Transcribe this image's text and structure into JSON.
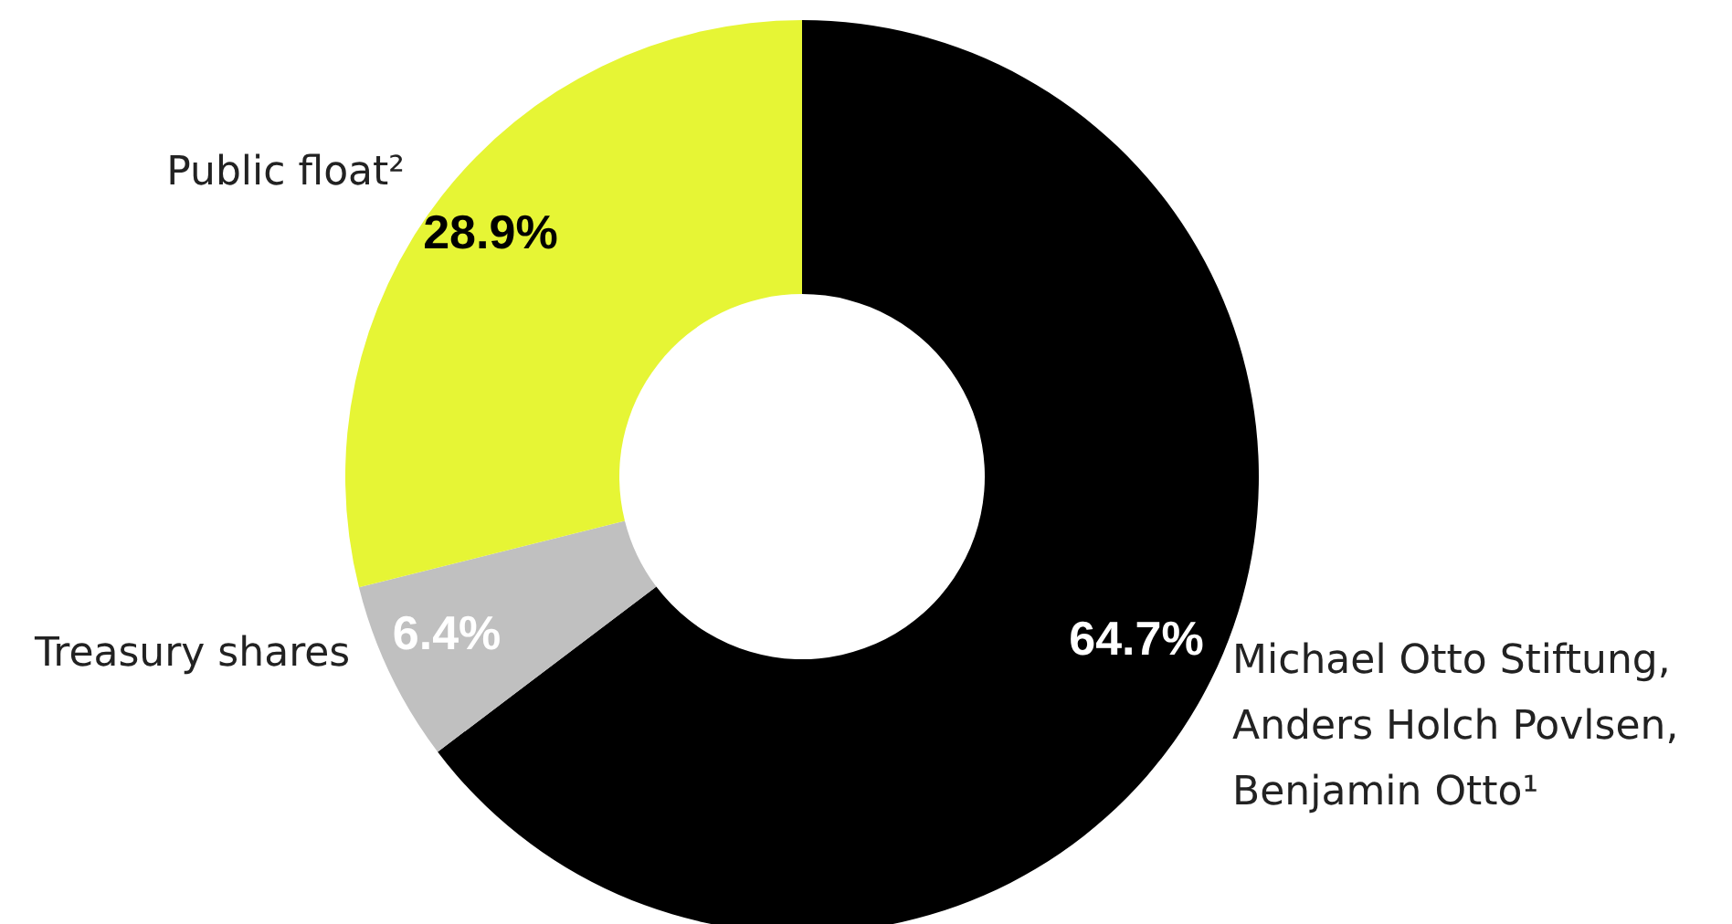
{
  "chart_data": {
    "type": "donut",
    "categories": [
      "Michael Otto Stiftung, Anders Holch Povlsen, Benjamin Otto¹",
      "Treasury shares",
      "Public float²"
    ],
    "values": [
      64.7,
      6.4,
      28.9
    ],
    "colors": [
      "#000000",
      "#c0c0c0",
      "#e6f535"
    ],
    "value_labels": [
      "64.7%",
      "6.4%",
      "28.9%"
    ],
    "legend": false
  }
}
